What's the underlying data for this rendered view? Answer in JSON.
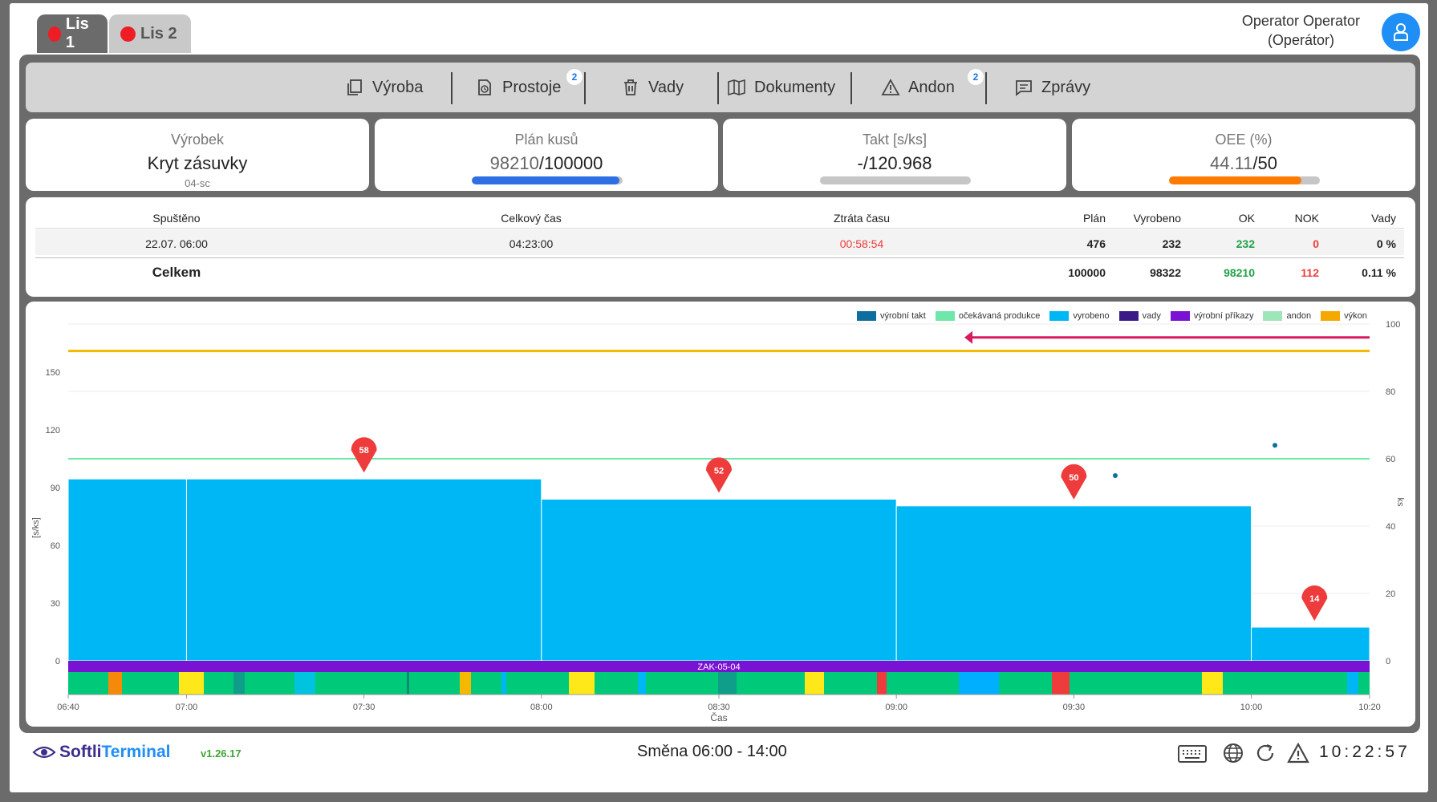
{
  "tabs": [
    {
      "label": "Lis 1",
      "active": true,
      "status_color": "#ee1d25"
    },
    {
      "label": "Lis 2",
      "active": false,
      "status_color": "#ee1d25"
    }
  ],
  "user": {
    "name": "Operator Operator",
    "role": "(Operátor)"
  },
  "nav": [
    {
      "label": "Výroba",
      "icon": "copy-icon"
    },
    {
      "label": "Prostoje",
      "icon": "clock-file-icon",
      "badge": "2"
    },
    {
      "label": "Vady",
      "icon": "trash-icon"
    },
    {
      "label": "Dokumenty",
      "icon": "book-icon"
    },
    {
      "label": "Andon",
      "icon": "warning-icon",
      "badge": "2"
    },
    {
      "label": "Zprávy",
      "icon": "message-icon"
    }
  ],
  "cards": {
    "product": {
      "label": "Výrobek",
      "value": "Kryt zásuvky",
      "sub": "04-sc"
    },
    "plan": {
      "label": "Plán kusů",
      "current": "98210",
      "total": "/100000",
      "progress": 0.98,
      "color": "#2f6fe4"
    },
    "takt": {
      "label": "Takt [s/ks]",
      "value": "-/120.968",
      "progress": 0,
      "color": "#2f6fe4"
    },
    "oee": {
      "label": "OEE (%)",
      "current": "44.11",
      "total": "/50",
      "progress": 0.88,
      "color": "#ff7a00"
    }
  },
  "summary": {
    "headers": [
      "Spuštěno",
      "Celkový čas",
      "Ztráta času",
      "Plán",
      "Vyrobeno",
      "OK",
      "NOK",
      "Vady"
    ],
    "row": [
      "22.07. 06:00",
      "04:23:00",
      "00:58:54",
      "476",
      "232",
      "232",
      "0",
      "0 %"
    ],
    "total": [
      "Celkem",
      "100000",
      "98322",
      "98210",
      "112",
      "0.11 %"
    ]
  },
  "chart_data": {
    "type": "bar",
    "legend": [
      {
        "name": "výrobní takt",
        "color": "#0e6e9e"
      },
      {
        "name": "očekávaná produkce",
        "color": "#6ee7a8"
      },
      {
        "name": "vyrobeno",
        "color": "#00b7f5"
      },
      {
        "name": "vady",
        "color": "#3b1a87"
      },
      {
        "name": "výrobní příkazy",
        "color": "#7a12d4"
      },
      {
        "name": "andon",
        "color": "#9ee6b8"
      },
      {
        "name": "výkon",
        "color": "#f5a800"
      }
    ],
    "xlabel": "Čas",
    "ylabel_left": "[s/ks]",
    "ylabel_right": "ks",
    "x_ticks": [
      "06:40",
      "07:00",
      "07:30",
      "08:00",
      "08:30",
      "09:00",
      "09:30",
      "10:00",
      "10:20"
    ],
    "y_left_ticks": [
      "0",
      "30",
      "60",
      "90",
      "120",
      "150"
    ],
    "y_right_ticks": [
      "0",
      "20",
      "40",
      "60",
      "80",
      "100"
    ],
    "y_left_range": [
      0,
      175
    ],
    "y_right_range": [
      0,
      100
    ],
    "bars": [
      {
        "start": "06:40",
        "end": "07:00",
        "value": 54
      },
      {
        "start": "07:00",
        "end": "08:00",
        "value": 54,
        "marker": "58"
      },
      {
        "start": "08:00",
        "end": "09:00",
        "value": 48,
        "marker": "52"
      },
      {
        "start": "09:00",
        "end": "10:00",
        "value": 46,
        "marker": "50"
      },
      {
        "start": "10:00",
        "end": "10:20",
        "value": 10,
        "marker": "14"
      }
    ],
    "expected_production": 60,
    "performance": 92,
    "points": [
      {
        "time": "09:37",
        "value": 55
      },
      {
        "time": "10:04",
        "value": 64
      }
    ],
    "order_label": "ZAK-05-04"
  },
  "footer": {
    "brand_prefix": "Softli",
    "brand_suffix": "Terminal",
    "version": "v1.26.17",
    "shift": "Směna 06:00 - 14:00",
    "clock": "10:22:57"
  }
}
